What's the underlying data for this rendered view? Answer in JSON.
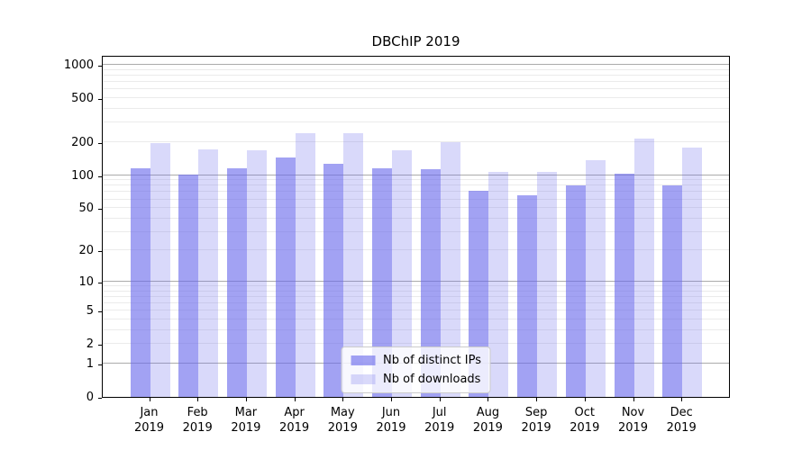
{
  "chart_data": {
    "type": "bar",
    "title": "DBChIP 2019",
    "categories": [
      "Jan",
      "Feb",
      "Mar",
      "Apr",
      "May",
      "Jun",
      "Jul",
      "Aug",
      "Sep",
      "Oct",
      "Nov",
      "Dec"
    ],
    "x_sublabel": "2019",
    "series": [
      {
        "name": "Nb of distinct IPs",
        "color": "rgba(105,105,235,0.62)",
        "values": [
          116,
          101,
          116,
          145,
          127,
          116,
          113,
          72,
          66,
          81,
          104,
          80
        ]
      },
      {
        "name": "Nb of downloads",
        "color": "rgba(105,105,235,0.25)",
        "values": [
          194,
          171,
          167,
          240,
          239,
          167,
          199,
          107,
          107,
          136,
          216,
          178
        ]
      }
    ],
    "y_scale": "log10(value+1)",
    "y_ticks": [
      1000,
      500,
      200,
      100,
      50,
      20,
      10,
      5,
      2,
      1,
      0
    ],
    "y_axis_max": 1231,
    "grid": {
      "major_lines_at": [
        1,
        10,
        100,
        1000
      ],
      "minor_lines": "2-9 per decade",
      "major_color": "#ababab",
      "minor_color": "#ebebeb"
    },
    "legend": {
      "position": "lower center"
    }
  }
}
